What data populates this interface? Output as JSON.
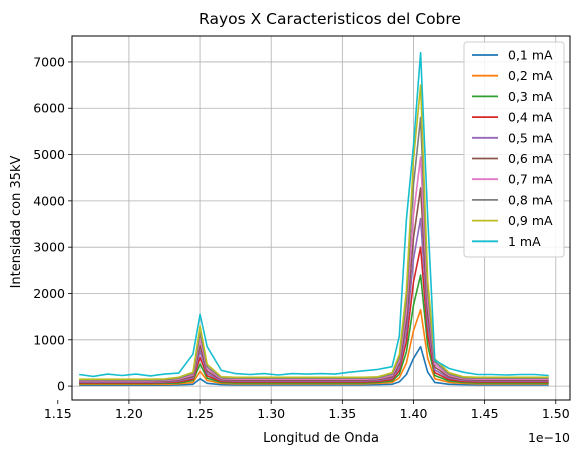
{
  "chart_data": {
    "type": "line",
    "title": "Rayos X Caracteristicos del Cobre",
    "xlabel": "Longitud de Onda",
    "ylabel": "Intensidad con 35kV",
    "x_offset_label": "1e−10",
    "xlim": [
      1.16,
      1.51
    ],
    "ylim": [
      -300,
      7560
    ],
    "x_ticks": [
      1.15,
      1.2,
      1.25,
      1.3,
      1.35,
      1.4,
      1.45,
      1.5
    ],
    "x_tick_labels": [
      "1.15",
      "1.20",
      "1.25",
      "1.30",
      "1.35",
      "1.40",
      "1.45",
      "1.50"
    ],
    "y_ticks": [
      0,
      1000,
      2000,
      3000,
      4000,
      5000,
      6000,
      7000
    ],
    "y_tick_labels": [
      "0",
      "1000",
      "2000",
      "3000",
      "4000",
      "5000",
      "6000",
      "7000"
    ],
    "grid": true,
    "legend_position": "top-right",
    "x": [
      1.165,
      1.175,
      1.185,
      1.195,
      1.205,
      1.215,
      1.225,
      1.235,
      1.245,
      1.25,
      1.255,
      1.265,
      1.275,
      1.285,
      1.295,
      1.305,
      1.315,
      1.325,
      1.335,
      1.345,
      1.355,
      1.365,
      1.375,
      1.385,
      1.39,
      1.395,
      1.4,
      1.405,
      1.41,
      1.415,
      1.425,
      1.435,
      1.445,
      1.455,
      1.465,
      1.475,
      1.485,
      1.495
    ],
    "series": [
      {
        "name": "0,1 mA",
        "color": "#1f77b4",
        "values": [
          20,
          20,
          20,
          20,
          20,
          20,
          20,
          25,
          40,
          160,
          60,
          30,
          25,
          25,
          25,
          25,
          25,
          25,
          25,
          25,
          25,
          25,
          30,
          40,
          90,
          250,
          600,
          850,
          300,
          80,
          40,
          30,
          25,
          25,
          25,
          25,
          25,
          25
        ]
      },
      {
        "name": "0,2 mA",
        "color": "#ff7f0e",
        "values": [
          40,
          40,
          40,
          40,
          40,
          40,
          40,
          50,
          80,
          320,
          120,
          60,
          50,
          50,
          50,
          50,
          50,
          50,
          50,
          50,
          50,
          50,
          60,
          80,
          180,
          500,
          1200,
          1650,
          600,
          160,
          80,
          60,
          50,
          50,
          50,
          50,
          50,
          50
        ]
      },
      {
        "name": "0,3 mA",
        "color": "#2ca02c",
        "values": [
          55,
          55,
          55,
          55,
          55,
          55,
          60,
          70,
          120,
          480,
          170,
          80,
          70,
          70,
          70,
          70,
          70,
          70,
          70,
          70,
          70,
          70,
          80,
          110,
          260,
          740,
          1750,
          2400,
          880,
          230,
          110,
          80,
          70,
          70,
          70,
          70,
          70,
          70
        ]
      },
      {
        "name": "0,4 mA",
        "color": "#d62728",
        "values": [
          70,
          70,
          70,
          70,
          70,
          70,
          75,
          90,
          150,
          620,
          220,
          100,
          90,
          90,
          90,
          90,
          90,
          90,
          90,
          90,
          90,
          90,
          100,
          140,
          330,
          960,
          2250,
          3000,
          1100,
          290,
          140,
          100,
          90,
          90,
          90,
          90,
          90,
          90
        ]
      },
      {
        "name": "0,5 mA",
        "color": "#9467bd",
        "values": [
          85,
          85,
          85,
          85,
          85,
          85,
          90,
          110,
          180,
          760,
          270,
          120,
          110,
          110,
          110,
          110,
          110,
          110,
          110,
          110,
          110,
          110,
          120,
          170,
          400,
          1180,
          2750,
          3620,
          1330,
          350,
          170,
          120,
          110,
          110,
          110,
          110,
          110,
          110
        ]
      },
      {
        "name": "0,6 mA",
        "color": "#8c564b",
        "values": [
          100,
          100,
          100,
          100,
          100,
          100,
          105,
          130,
          210,
          880,
          320,
          140,
          130,
          130,
          130,
          130,
          130,
          130,
          130,
          130,
          130,
          130,
          140,
          200,
          470,
          1400,
          3200,
          4280,
          1570,
          410,
          200,
          140,
          130,
          130,
          130,
          130,
          130,
          130
        ]
      },
      {
        "name": "0,7 mA",
        "color": "#e377c2",
        "values": [
          115,
          115,
          115,
          115,
          115,
          115,
          120,
          150,
          240,
          1020,
          370,
          160,
          150,
          150,
          150,
          150,
          150,
          150,
          150,
          150,
          150,
          150,
          160,
          230,
          540,
          1620,
          3700,
          4950,
          1810,
          470,
          230,
          160,
          150,
          150,
          150,
          150,
          150,
          150
        ]
      },
      {
        "name": "0,8 mA",
        "color": "#7f7f7f",
        "values": [
          130,
          130,
          130,
          130,
          130,
          130,
          135,
          170,
          270,
          1150,
          420,
          180,
          170,
          170,
          170,
          170,
          170,
          170,
          170,
          170,
          170,
          170,
          180,
          260,
          610,
          1840,
          4350,
          5800,
          2050,
          530,
          260,
          180,
          170,
          170,
          170,
          170,
          170,
          170
        ]
      },
      {
        "name": "0,9 mA",
        "color": "#bcbd22",
        "values": [
          150,
          150,
          150,
          150,
          150,
          150,
          155,
          190,
          300,
          1300,
          470,
          200,
          190,
          190,
          190,
          190,
          190,
          190,
          190,
          190,
          190,
          190,
          200,
          290,
          680,
          2060,
          4900,
          6500,
          2280,
          590,
          290,
          200,
          190,
          190,
          190,
          190,
          190,
          190
        ]
      },
      {
        "name": "1 mA",
        "color": "#17becf",
        "values": [
          250,
          210,
          260,
          230,
          260,
          220,
          260,
          280,
          690,
          1550,
          850,
          340,
          270,
          250,
          270,
          240,
          270,
          260,
          270,
          260,
          300,
          330,
          360,
          420,
          1080,
          3600,
          5200,
          7200,
          3650,
          560,
          380,
          300,
          250,
          250,
          240,
          250,
          250,
          230
        ]
      }
    ]
  }
}
